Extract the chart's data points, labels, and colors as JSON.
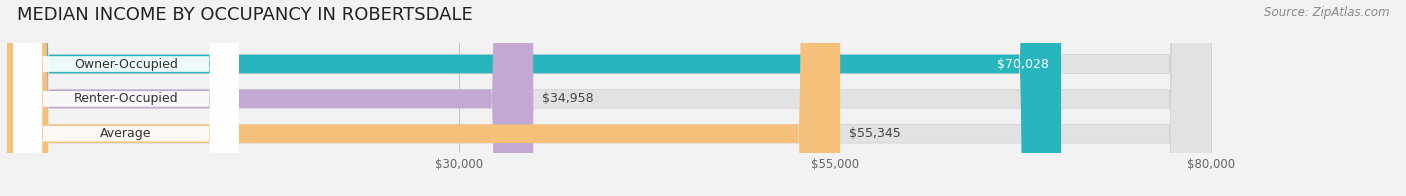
{
  "title": "MEDIAN INCOME BY OCCUPANCY IN ROBERTSDALE",
  "source": "Source: ZipAtlas.com",
  "categories": [
    "Owner-Occupied",
    "Renter-Occupied",
    "Average"
  ],
  "values": [
    70028,
    34958,
    55345
  ],
  "bar_colors": [
    "#29b5be",
    "#c4a8d4",
    "#f5c07a"
  ],
  "bar_bg_color": "#e2e2e2",
  "value_labels": [
    "$70,028",
    "$34,958",
    "$55,345"
  ],
  "value_inside": [
    true,
    false,
    false
  ],
  "xlim_data": [
    0,
    80000
  ],
  "xstart": 0,
  "xticks": [
    30000,
    55000,
    80000
  ],
  "xtick_labels": [
    "$30,000",
    "$55,000",
    "$80,000"
  ],
  "title_fontsize": 13,
  "source_fontsize": 8.5,
  "label_fontsize": 9,
  "value_fontsize": 9,
  "bar_height": 0.52,
  "background_color": "#f2f2f2",
  "white_label_bg": "#ffffff",
  "bar_bg_shadow": "#d0d0d0"
}
